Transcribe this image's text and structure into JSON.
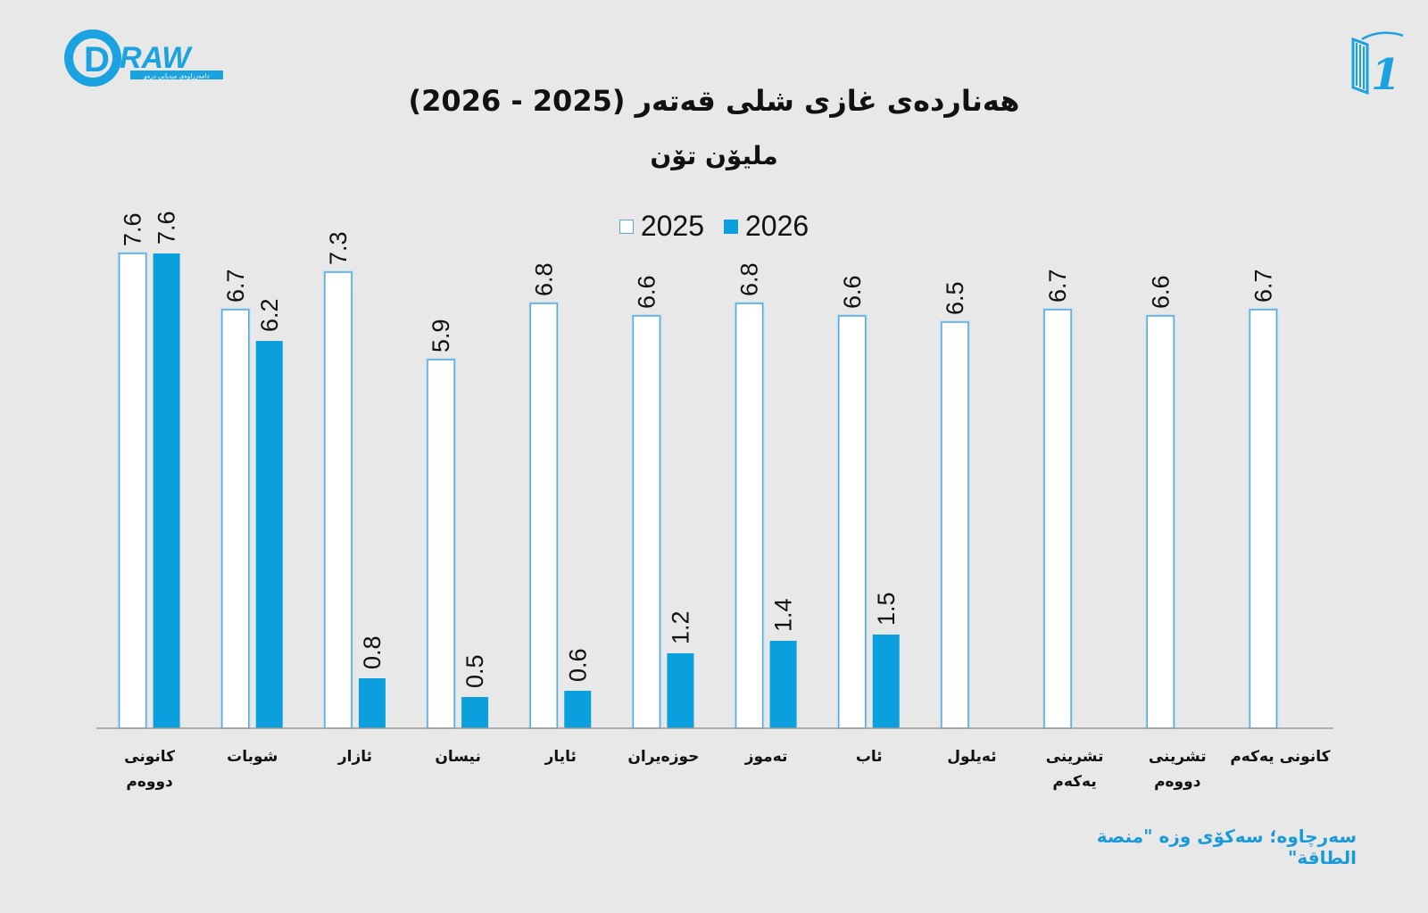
{
  "brand": {
    "logo_word": "RAW",
    "logo_letter": "D",
    "logo_tagline": "دامەزراوەی میدیایی درەو"
  },
  "right_logo": {
    "numeral": "1"
  },
  "colors": {
    "accent": "#0b9fde",
    "bar_2025_fill": "#ffffff",
    "bar_2025_border": "#5aa6d8",
    "background": "#e8e8e8"
  },
  "chart_data": {
    "type": "bar",
    "title": "هەناردەی غازی شلی قەتەر (2025 - 2026)",
    "subtitle": "ملیۆن تۆن",
    "legend_position": "top-center",
    "grid": false,
    "ylim": [
      0,
      8
    ],
    "categories": [
      "کانونی دووەم",
      "شوبات",
      "ئازار",
      "نیسان",
      "ئایار",
      "حوزەیران",
      "تەموز",
      "ئاب",
      "ئەیلول",
      "تشرینی یەکەم",
      "تشرینی دووەم",
      "کانونی یەکەم"
    ],
    "category_lines": [
      [
        "کانونی",
        "دووەم"
      ],
      [
        "شوبات"
      ],
      [
        "ئازار"
      ],
      [
        "نیسان"
      ],
      [
        "ئایار"
      ],
      [
        "حوزەیران"
      ],
      [
        "تەموز"
      ],
      [
        "ئاب"
      ],
      [
        "ئەیلول"
      ],
      [
        "تشرینی",
        "یەکەم"
      ],
      [
        "تشرینی",
        "دووەم"
      ],
      [
        "کانونی یەکەم"
      ]
    ],
    "series": [
      {
        "name": "2025",
        "values": [
          7.6,
          6.7,
          7.3,
          5.9,
          6.8,
          6.6,
          6.8,
          6.6,
          6.5,
          6.7,
          6.6,
          6.7
        ],
        "labels": [
          "7.6",
          "6.7",
          "7.3",
          "5.9",
          "6.8",
          "6.6",
          "6.8",
          "6.6",
          "6.5",
          "6.7",
          "6.6",
          "6.7"
        ]
      },
      {
        "name": "2026",
        "values": [
          7.6,
          6.2,
          0.8,
          0.5,
          0.6,
          1.2,
          1.4,
          1.5,
          null,
          null,
          null,
          null
        ],
        "labels": [
          "7.6",
          "6.2",
          "0.8",
          "0.5",
          "0.6",
          "1.2",
          "1.4",
          "1.5",
          "",
          "",
          "",
          ""
        ]
      }
    ]
  },
  "source": "سەرچاوە؛ سەکۆی وزە \"منصة الطاقة\""
}
